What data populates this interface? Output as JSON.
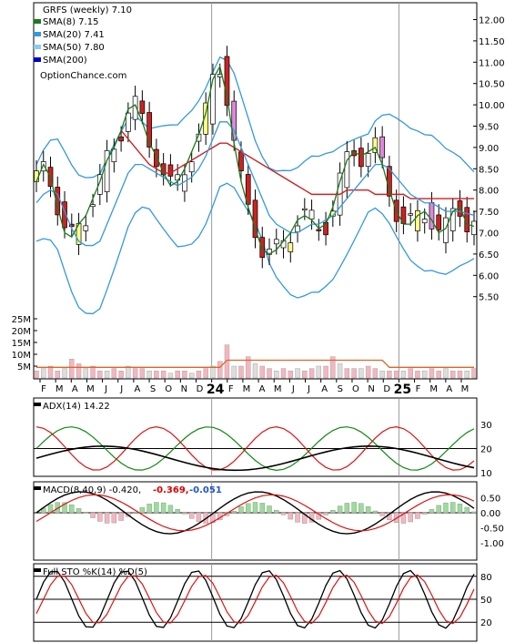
{
  "colors": {
    "up": "#ffffff",
    "down": "#cc2222",
    "highlight": "#ffff88",
    "pink": "#dd88dd",
    "sma8": "#1a7a1a",
    "sma20": "#3399dd",
    "sma50": "#cc2222",
    "vol_up": "#f4b6c0",
    "vol_down": "#dddddd",
    "vol_ma": "#dd6622",
    "adx": "#000000",
    "plus_di": "#118811",
    "minus_di": "#dd1111",
    "macd_hist_up": "#99dd99",
    "macd_hist_down": "#f4b6c0"
  },
  "price_panel": {
    "title": "GRFS (weekly) 7.10",
    "legend": [
      {
        "label": "SMA(8) 7.15",
        "color": "#1a7a1a"
      },
      {
        "label": "SMA(20) 7.41",
        "color": "#3399dd"
      },
      {
        "label": "SMA(50) 7.80",
        "color": "#cc2222"
      },
      {
        "label": "SMA(200)",
        "color": "#0000cc"
      }
    ],
    "watermark": "OptionChance.com",
    "y_ticks": [
      "12.00",
      "11.50",
      "11.00",
      "10.50",
      "10.00",
      "9.50",
      "9.00",
      "8.50",
      "8.00",
      "7.50",
      "7.00",
      "6.50",
      "6.00",
      "5.50"
    ],
    "vol_ticks": [
      "25M",
      "20M",
      "15M",
      "10M",
      "5M"
    ]
  },
  "x_axis": {
    "labels": [
      {
        "t": "F",
        "big": false
      },
      {
        "t": "M",
        "big": false
      },
      {
        "t": "A",
        "big": false
      },
      {
        "t": "M",
        "big": false
      },
      {
        "t": "J",
        "big": false
      },
      {
        "t": "J",
        "big": false
      },
      {
        "t": "A",
        "big": false
      },
      {
        "t": "S",
        "big": false
      },
      {
        "t": "O",
        "big": false
      },
      {
        "t": "N",
        "big": false
      },
      {
        "t": "D",
        "big": false
      },
      {
        "t": "24",
        "big": true
      },
      {
        "t": "F",
        "big": false
      },
      {
        "t": "M",
        "big": false
      },
      {
        "t": "A",
        "big": false
      },
      {
        "t": "M",
        "big": false
      },
      {
        "t": "J",
        "big": false
      },
      {
        "t": "J",
        "big": false
      },
      {
        "t": "A",
        "big": false
      },
      {
        "t": "S",
        "big": false
      },
      {
        "t": "O",
        "big": false
      },
      {
        "t": "N",
        "big": false
      },
      {
        "t": "D",
        "big": false
      },
      {
        "t": "25",
        "big": true
      },
      {
        "t": "F",
        "big": false
      },
      {
        "t": "M",
        "big": false
      },
      {
        "t": "A",
        "big": false
      },
      {
        "t": "M",
        "big": false
      }
    ]
  },
  "adx_panel": {
    "title": "ADX(14) 14.22",
    "y_ticks": [
      "30",
      "20",
      "10"
    ]
  },
  "macd_panel": {
    "title": "MACD(8,40,9) -0.420,",
    "macd_val": "-0.369,",
    "signal_val": "-0.051",
    "y_ticks": [
      "0.50",
      "0.00",
      "-0.50",
      "-1.00"
    ]
  },
  "sto_panel": {
    "title": "Full STO %K(14) %D(5)",
    "y_ticks": [
      "80",
      "50",
      "20"
    ]
  },
  "chart_data": {
    "type": "line",
    "symbol": "GRFS",
    "interval": "weekly",
    "series": [
      {
        "name": "SMA(8)",
        "values": [
          8.2,
          8.6,
          8.3,
          7.6,
          7.0,
          6.9,
          7.2,
          7.4,
          7.8,
          8.2,
          8.7,
          9.0,
          9.4,
          9.9,
          10.0,
          9.6,
          9.1,
          8.8,
          8.4,
          8.1,
          8.2,
          8.5,
          8.9,
          9.3,
          9.8,
          10.6,
          10.9,
          10.2,
          9.1,
          8.2,
          7.6,
          7.1,
          6.6,
          6.5,
          6.6,
          6.8,
          7.0,
          7.3,
          7.4,
          7.3,
          7.1,
          7.2,
          7.6,
          8.2,
          8.7,
          8.9,
          8.8,
          8.9,
          9.0,
          8.6,
          8.0,
          7.5,
          7.2,
          7.2,
          7.4,
          7.5,
          7.3,
          7.0,
          7.1,
          7.5,
          7.6,
          7.2,
          7.15
        ]
      },
      {
        "name": "SMA(20)",
        "values": [
          7.7,
          7.9,
          8.0,
          7.9,
          7.5,
          7.1,
          6.8,
          6.7,
          6.7,
          6.8,
          7.2,
          7.6,
          8.0,
          8.4,
          8.6,
          8.6,
          8.5,
          8.4,
          8.3,
          8.2,
          8.1,
          8.2,
          8.3,
          8.5,
          8.8,
          9.2,
          9.6,
          9.6,
          9.4,
          9.0,
          8.6,
          8.2,
          7.8,
          7.4,
          7.2,
          7.1,
          7.0,
          7.0,
          7.1,
          7.2,
          7.2,
          7.3,
          7.4,
          7.6,
          7.8,
          8.0,
          8.2,
          8.4,
          8.6,
          8.6,
          8.5,
          8.3,
          8.1,
          7.9,
          7.8,
          7.7,
          7.7,
          7.6,
          7.5,
          7.5,
          7.5,
          7.45,
          7.41
        ]
      },
      {
        "name": "SMA(50)",
        "values": [
          null,
          null,
          null,
          null,
          null,
          null,
          null,
          null,
          null,
          null,
          null,
          null,
          9.4,
          9.2,
          9.0,
          8.8,
          8.6,
          8.5,
          8.4,
          8.4,
          8.5,
          8.6,
          8.7,
          8.8,
          8.9,
          9.0,
          9.1,
          9.1,
          9.0,
          8.9,
          8.8,
          8.7,
          8.6,
          8.5,
          8.4,
          8.3,
          8.2,
          8.1,
          8.0,
          7.9,
          7.9,
          7.9,
          7.9,
          7.9,
          8.0,
          8.0,
          8.0,
          8.0,
          7.9,
          7.9,
          7.9,
          7.9,
          7.9,
          7.8,
          7.8,
          7.8,
          7.8,
          7.8,
          7.8,
          7.8,
          7.8,
          7.8,
          7.8
        ]
      }
    ]
  }
}
